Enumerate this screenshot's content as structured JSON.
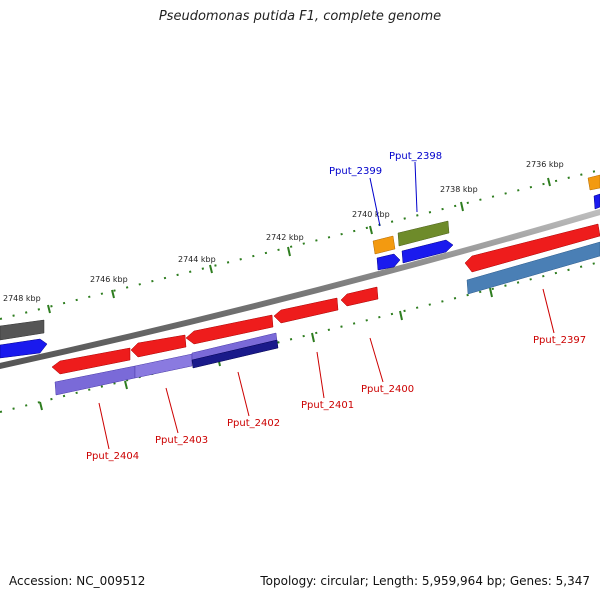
{
  "title": "Pseudomonas putida F1, complete genome",
  "accession": "Accession: NC_009512",
  "stats": "Topology: circular; Length: 5,959,964 bp; Genes: 5,347",
  "colors": {
    "backbone": "#7a7a7a",
    "tick": "#2e7d1f",
    "red_gene": "#ee1c1c",
    "blue_gene": "#1a1aee",
    "steel_gene": "#4a7fb5",
    "purple_gene": "#7a6ad8",
    "navy_gene": "#1a1a8a",
    "orange_gene": "#f39a10",
    "olive_gene": "#6e8b2a",
    "gray_gene": "#555555",
    "label_red": "#cc0000",
    "label_blue": "#0000cc"
  },
  "scale_labels": [
    "2748 kbp",
    "2746 kbp",
    "2744 kbp",
    "2742 kbp",
    "2740 kbp",
    "2738 kbp",
    "2736 kbp"
  ],
  "gene_labels": {
    "pput_2404": "Pput_2404",
    "pput_2403": "Pput_2403",
    "pput_2402": "Pput_2402",
    "pput_2401": "Pput_2401",
    "pput_2400": "Pput_2400",
    "pput_2399": "Pput_2399",
    "pput_2398": "Pput_2398",
    "pput_2397": "Pput_2397"
  }
}
